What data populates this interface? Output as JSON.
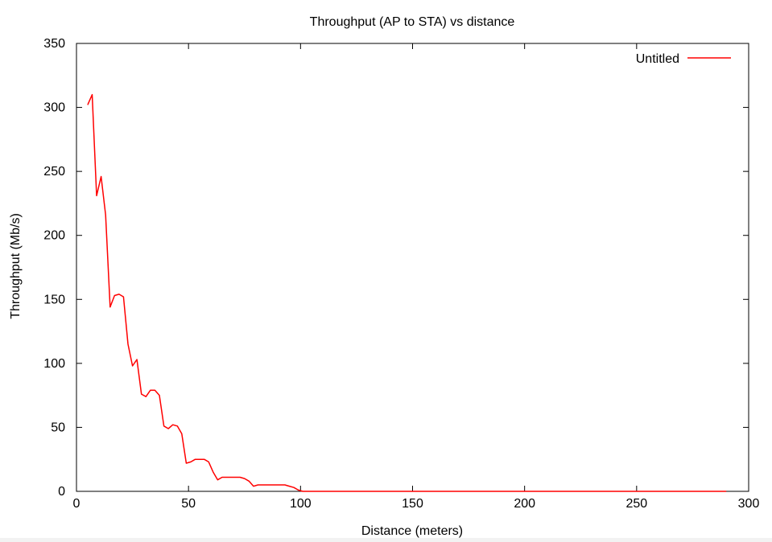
{
  "chart_data": {
    "type": "line",
    "title": "Throughput (AP to STA) vs distance",
    "xlabel": "Distance (meters)",
    "ylabel": "Throughput (Mb/s)",
    "xlim": [
      0,
      300
    ],
    "ylim": [
      0,
      350
    ],
    "xticks": [
      0,
      50,
      100,
      150,
      200,
      250,
      300
    ],
    "yticks": [
      0,
      50,
      100,
      150,
      200,
      250,
      300,
      350
    ],
    "grid": false,
    "legend_position": "top-right",
    "series": [
      {
        "name": "Untitled",
        "color": "#ff0000",
        "x": [
          5,
          7,
          9,
          11,
          13,
          15,
          17,
          19,
          21,
          23,
          25,
          27,
          29,
          31,
          33,
          35,
          37,
          39,
          41,
          43,
          45,
          47,
          49,
          51,
          53,
          55,
          57,
          59,
          61,
          63,
          65,
          67,
          69,
          71,
          73,
          75,
          77,
          79,
          81,
          83,
          85,
          87,
          89,
          91,
          93,
          95,
          97,
          99,
          101,
          150,
          200,
          250,
          290
        ],
        "y": [
          302,
          310,
          231,
          246,
          216,
          144,
          153,
          154,
          152,
          115,
          98,
          103,
          76,
          74,
          79,
          79,
          75,
          51,
          49,
          52,
          51,
          45,
          22,
          23,
          25,
          25,
          25,
          23,
          15,
          9,
          11,
          11,
          11,
          11,
          11,
          10,
          8,
          4,
          5,
          5,
          5,
          5,
          5,
          5,
          5,
          4,
          3,
          1,
          0,
          0,
          0,
          0,
          0
        ]
      }
    ]
  }
}
